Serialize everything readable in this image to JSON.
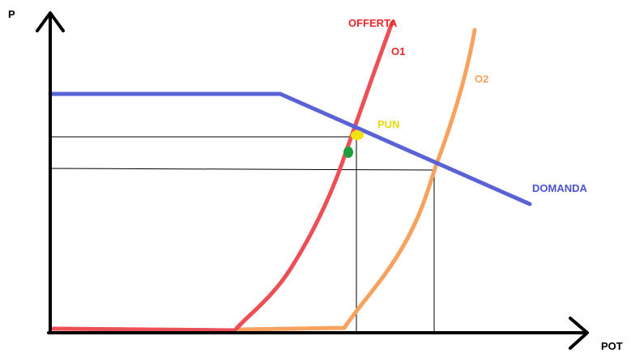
{
  "axes": {
    "y_label": "P",
    "x_label": "POT"
  },
  "labels": {
    "supply": "OFFERTA",
    "o1": "O1",
    "o2": "O2",
    "pun": "PUN",
    "demand": "DOMANDA"
  },
  "colors": {
    "axis": "#000000",
    "supply_o1": "#ec4f55",
    "supply_o2": "#f7a25f",
    "demand": "#5a63d6",
    "pun_marker": "#f3e211",
    "alt_marker": "#1e9e3c",
    "guide": "#000000",
    "supply_text": "#e8262b",
    "o2_text": "#f7a25f",
    "pun_text": "#e8d80c",
    "demand_text": "#4a54cf"
  },
  "markers": [
    {
      "name": "pun-marker",
      "color_key": "pun_marker"
    },
    {
      "name": "green-marker",
      "color_key": "alt_marker"
    }
  ]
}
